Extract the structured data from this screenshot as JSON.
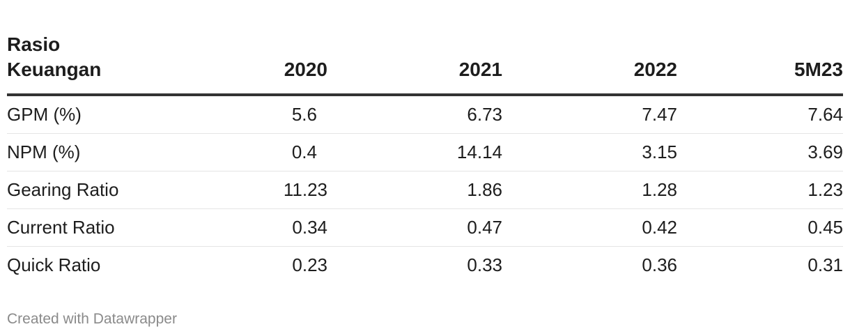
{
  "chart_data": {
    "type": "table",
    "columns": [
      "Rasio Keuangan",
      "2020",
      "2021",
      "2022",
      "5M23"
    ],
    "rows": [
      {
        "label": "GPM (%)",
        "values": [
          "5.6",
          "6.73",
          "7.47",
          "7.64"
        ]
      },
      {
        "label": "NPM (%)",
        "values": [
          "0.4",
          "14.14",
          "3.15",
          "3.69"
        ]
      },
      {
        "label": "Gearing Ratio",
        "values": [
          "11.23",
          "1.86",
          "1.28",
          "1.23"
        ]
      },
      {
        "label": "Current Ratio",
        "values": [
          "0.34",
          "0.47",
          "0.42",
          "0.45"
        ]
      },
      {
        "label": "Quick Ratio",
        "values": [
          "0.23",
          "0.33",
          "0.36",
          "0.31"
        ]
      }
    ]
  },
  "footer": {
    "credit": "Created with Datawrapper"
  }
}
